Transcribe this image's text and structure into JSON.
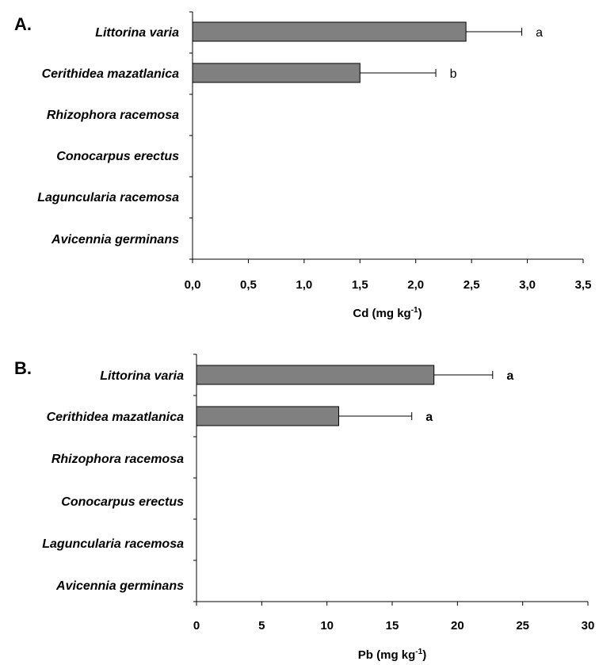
{
  "chart_data": [
    {
      "type": "bar",
      "orientation": "horizontal",
      "panel_label": "A.",
      "categories": [
        "Littorina varia",
        "Cerithidea mazatlanica",
        "Rhizophora racemosa",
        "Conocarpus erectus",
        "Laguncularia racemosa",
        "Avicennia germinans"
      ],
      "values": [
        2.45,
        1.5,
        0,
        0,
        0,
        0
      ],
      "errors": [
        0.5,
        0.68,
        null,
        null,
        null,
        null
      ],
      "significance": [
        "a",
        "b",
        "",
        "",
        "",
        ""
      ],
      "xlabel_main": "Cd (mg kg",
      "xlabel_sup": "-1",
      "xlabel_end": ")",
      "xlim": [
        0,
        3.5
      ],
      "xticks": [
        0,
        0.5,
        1,
        1.5,
        2,
        2.5,
        3,
        3.5
      ],
      "xtick_labels": [
        "0,0",
        "0,5",
        "1,0",
        "1,5",
        "2,0",
        "2,5",
        "3,0",
        "3,5"
      ],
      "bar_color": "#808080",
      "grid": false,
      "legend": "none"
    },
    {
      "type": "bar",
      "orientation": "horizontal",
      "panel_label": "B.",
      "categories": [
        "Littorina varia",
        "Cerithidea mazatlanica",
        "Rhizophora racemosa",
        "Conocarpus erectus",
        "Laguncularia racemosa",
        "Avicennia germinans"
      ],
      "values": [
        18.2,
        10.9,
        0,
        0,
        0,
        0
      ],
      "errors": [
        4.5,
        5.6,
        null,
        null,
        null,
        null
      ],
      "significance": [
        "a",
        "a",
        "",
        "",
        "",
        ""
      ],
      "xlabel_main": "Pb (mg kg",
      "xlabel_sup": "-1",
      "xlabel_end": ")",
      "xlim": [
        0,
        30
      ],
      "xticks": [
        0,
        5,
        10,
        15,
        20,
        25,
        30
      ],
      "xtick_labels": [
        "0",
        "5",
        "10",
        "15",
        "20",
        "25",
        "30"
      ],
      "bar_color": "#808080",
      "grid": false,
      "legend": "none"
    }
  ]
}
